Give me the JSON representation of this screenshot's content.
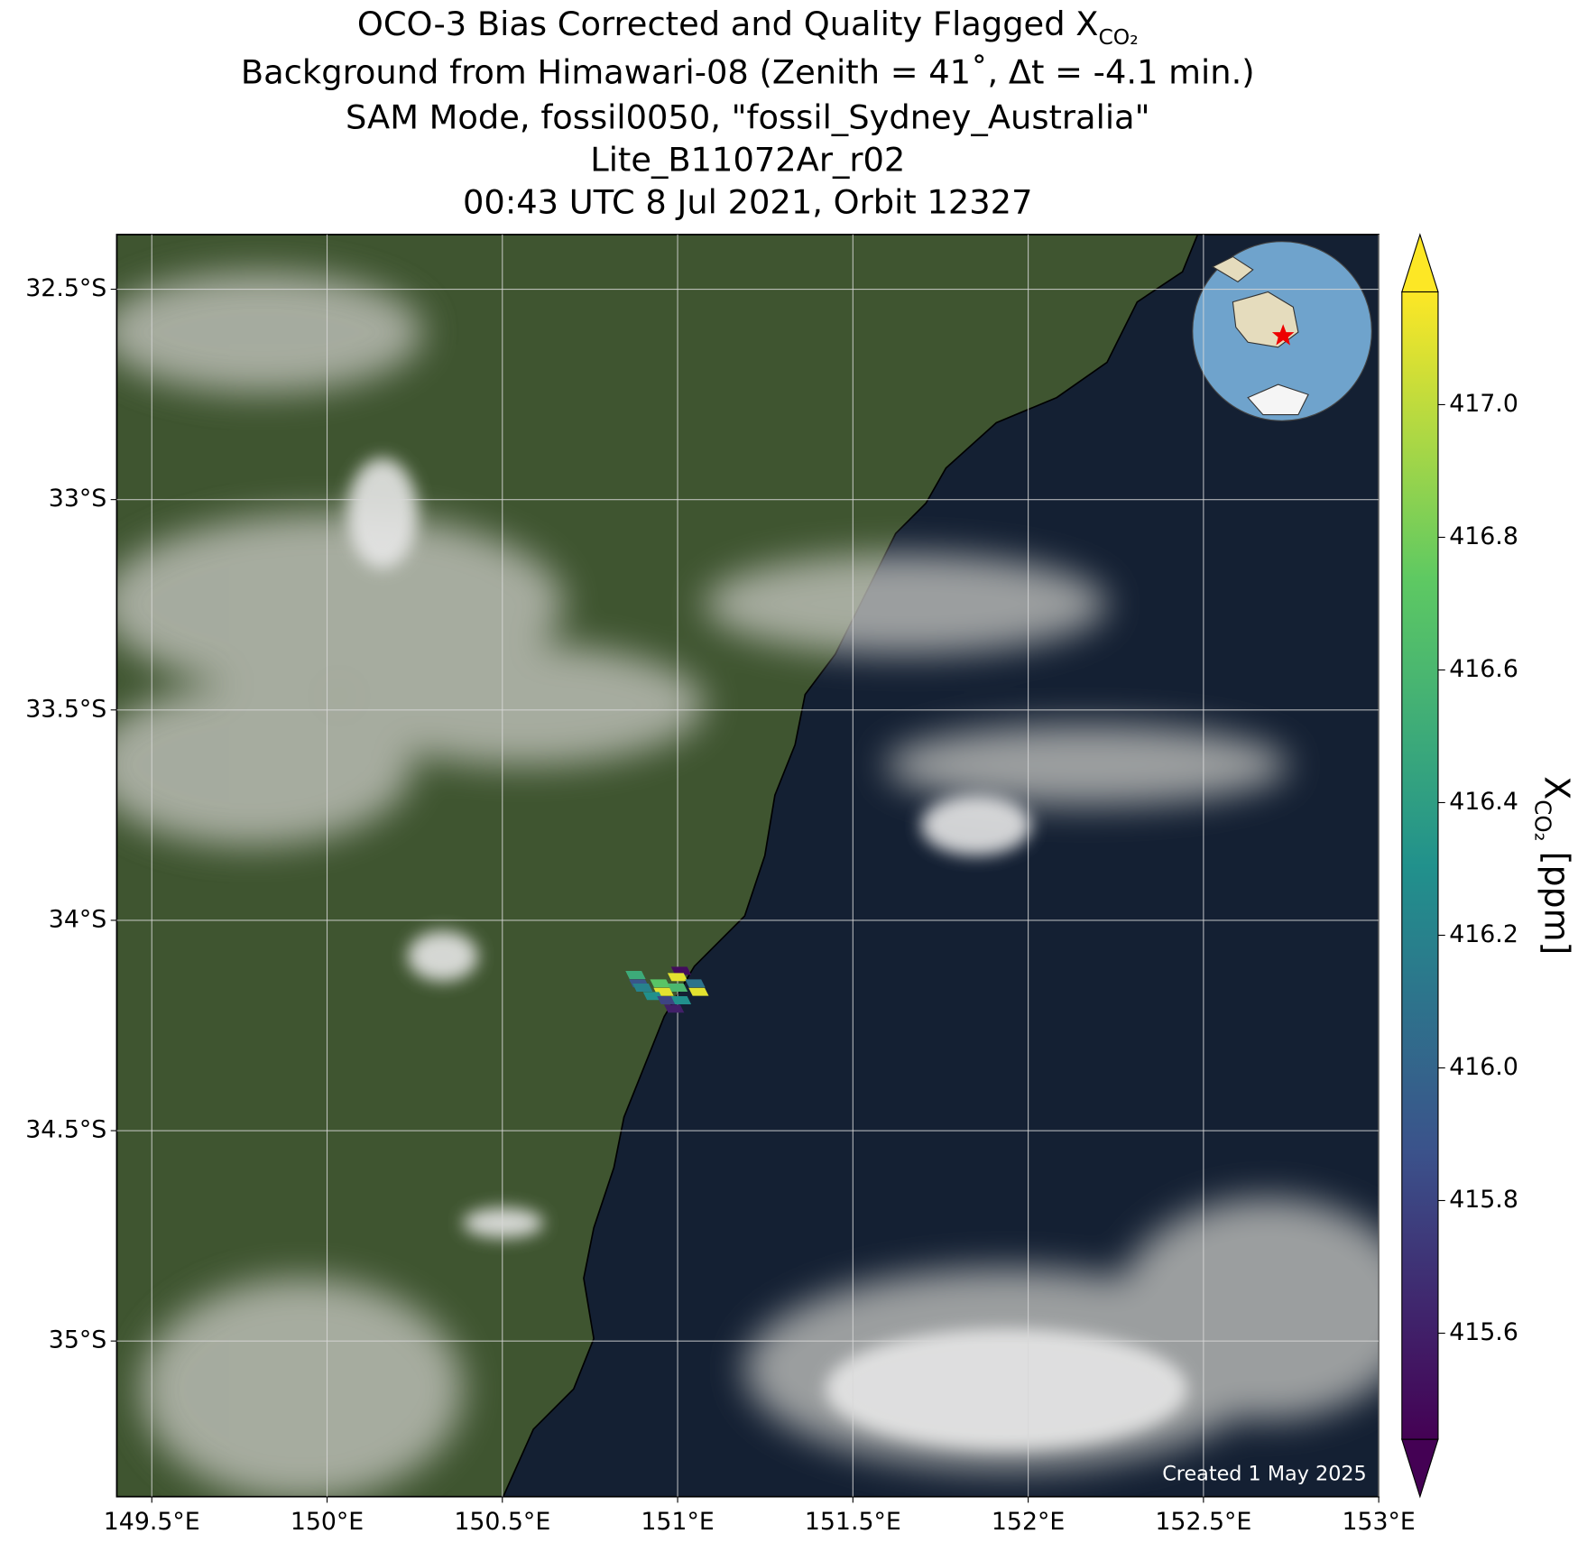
{
  "chart_data": {
    "type": "map",
    "title": [
      "OCO-3 Bias Corrected and Quality Flagged X",
      "Background from Himawari-08 (Zenith = 41˚, Δt = -4.1 min.)",
      "SAM Mode, fossil0050, \"fossil_Sydney_Australia\"",
      "Lite_B11072Ar_r02",
      "00:43 UTC 8 Jul 2021, Orbit 12327"
    ],
    "title_subscript": "CO₂",
    "colorbar_label": "X",
    "colorbar_label_subscript": "CO₂",
    "colorbar_unit": "[ppm]",
    "footnote": "Created 1 May 2025",
    "colormap": "viridis",
    "x": [
      151.01,
      150.88,
      151.0,
      150.89,
      150.95,
      151.05,
      150.9,
      150.96,
      151.0,
      151.06,
      150.93,
      150.97,
      151.01,
      150.99
    ],
    "y": [
      -34.12,
      -34.13,
      -34.135,
      -34.15,
      -34.15,
      -34.15,
      -34.16,
      -34.17,
      -34.16,
      -34.17,
      -34.18,
      -34.19,
      -34.19,
      -34.21
    ],
    "values": [
      415.5,
      416.5,
      417.1,
      415.9,
      416.7,
      416.1,
      416.2,
      417.1,
      416.6,
      417.1,
      416.3,
      415.8,
      416.3,
      415.6
    ],
    "clim": [
      415.44,
      417.17
    ],
    "xlim": [
      149.4,
      153.0
    ],
    "ylim": [
      -35.37,
      -32.37
    ],
    "xticks": [
      {
        "value": 149.5,
        "label": "149.5°E"
      },
      {
        "value": 150,
        "label": "150°E"
      },
      {
        "value": 150.5,
        "label": "150.5°E"
      },
      {
        "value": 151,
        "label": "151°E"
      },
      {
        "value": 151.5,
        "label": "151.5°E"
      },
      {
        "value": 152,
        "label": "152°E"
      },
      {
        "value": 152.5,
        "label": "152.5°E"
      },
      {
        "value": 153,
        "label": "153°E"
      }
    ],
    "yticks": [
      {
        "value": -32.5,
        "label": "32.5°S"
      },
      {
        "value": -33,
        "label": "33°S"
      },
      {
        "value": -33.5,
        "label": "33.5°S"
      },
      {
        "value": -34,
        "label": "34°S"
      },
      {
        "value": -34.5,
        "label": "34.5°S"
      },
      {
        "value": -35,
        "label": "35°S"
      }
    ],
    "cticks": [
      415.6,
      415.8,
      {
        "value": 416.0,
        "label": "416.0"
      },
      416.2,
      416.4,
      416.6,
      416.8,
      {
        "value": 417.0,
        "label": "417.0"
      }
    ],
    "grid": true
  }
}
